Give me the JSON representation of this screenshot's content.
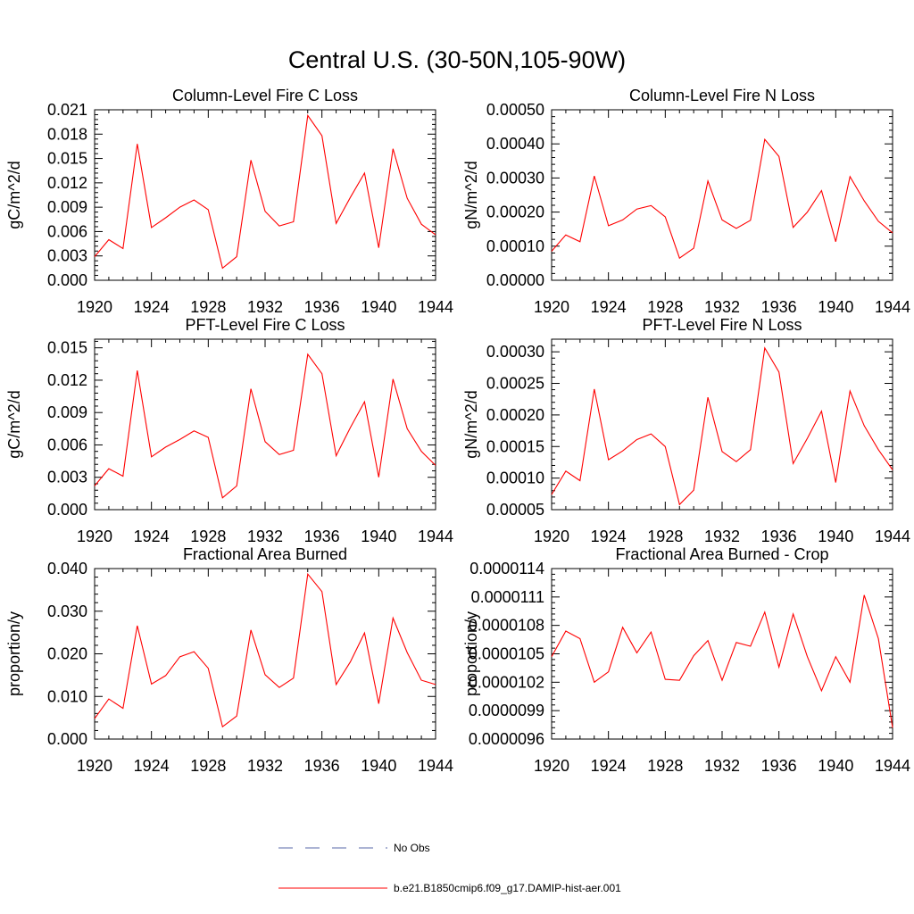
{
  "figure": {
    "title": "Central U.S. (30-50N,105-90W)",
    "legend": [
      {
        "label": "No Obs",
        "color": "#5a6aa8",
        "dash": true
      },
      {
        "label": "b.e21.B1850cmip6.f09_g17.DAMIP-hist-aer.001",
        "color": "#ff0000",
        "dash": false
      }
    ]
  },
  "chart_data": [
    {
      "type": "line",
      "title": "Column-Level Fire C Loss",
      "ylabel": "gC/m^2/d",
      "xlabel": "",
      "xlim": [
        1920,
        1944
      ],
      "ylim": [
        0,
        0.021
      ],
      "xticks": [
        "1920",
        "1924",
        "1928",
        "1932",
        "1936",
        "1940",
        "1944"
      ],
      "yticks": [
        "0.000",
        "0.003",
        "0.006",
        "0.009",
        "0.012",
        "0.015",
        "0.018",
        "0.021"
      ],
      "x": [
        1920,
        1921,
        1922,
        1923,
        1924,
        1925,
        1926,
        1927,
        1928,
        1929,
        1930,
        1931,
        1932,
        1933,
        1934,
        1935,
        1936,
        1937,
        1938,
        1939,
        1940,
        1941,
        1942,
        1943,
        1944
      ],
      "series": [
        {
          "color": "#ff0000",
          "values": [
            0.0029,
            0.005,
            0.0039,
            0.0168,
            0.0065,
            0.0077,
            0.009,
            0.0099,
            0.0087,
            0.0015,
            0.0029,
            0.0148,
            0.0085,
            0.0067,
            0.0072,
            0.0203,
            0.0178,
            0.007,
            0.0102,
            0.0132,
            0.004,
            0.0162,
            0.0101,
            0.0069,
            0.0056
          ]
        }
      ]
    },
    {
      "type": "line",
      "title": "Column-Level Fire N Loss",
      "ylabel": "gN/m^2/d",
      "xlabel": "",
      "xlim": [
        1920,
        1944
      ],
      "ylim": [
        0,
        0.0005
      ],
      "xticks": [
        "1920",
        "1924",
        "1928",
        "1932",
        "1936",
        "1940",
        "1944"
      ],
      "yticks": [
        "0.00000",
        "0.00010",
        "0.00020",
        "0.00030",
        "0.00040",
        "0.00050"
      ],
      "x": [
        1920,
        1921,
        1922,
        1923,
        1924,
        1925,
        1926,
        1927,
        1928,
        1929,
        1930,
        1931,
        1932,
        1933,
        1934,
        1935,
        1936,
        1937,
        1938,
        1939,
        1940,
        1941,
        1942,
        1943,
        1944
      ],
      "series": [
        {
          "color": "#ff0000",
          "values": [
            8.5e-05,
            0.000133,
            0.000113,
            0.000306,
            0.00016,
            0.000177,
            0.000209,
            0.000219,
            0.000186,
            6.5e-05,
            9.4e-05,
            0.000291,
            0.000177,
            0.000152,
            0.000176,
            0.000413,
            0.000363,
            0.000155,
            0.0002,
            0.000263,
            0.000113,
            0.000304,
            0.000233,
            0.000173,
            0.000139
          ]
        }
      ]
    },
    {
      "type": "line",
      "title": "PFT-Level Fire C Loss",
      "ylabel": "gC/m^2/d",
      "xlabel": "",
      "xlim": [
        1920,
        1944
      ],
      "ylim": [
        0,
        0.0158
      ],
      "xticks": [
        "1920",
        "1924",
        "1928",
        "1932",
        "1936",
        "1940",
        "1944"
      ],
      "yticks": [
        "0.000",
        "0.003",
        "0.006",
        "0.009",
        "0.012",
        "0.015"
      ],
      "x": [
        1920,
        1921,
        1922,
        1923,
        1924,
        1925,
        1926,
        1927,
        1928,
        1929,
        1930,
        1931,
        1932,
        1933,
        1934,
        1935,
        1936,
        1937,
        1938,
        1939,
        1940,
        1941,
        1942,
        1943,
        1944
      ],
      "series": [
        {
          "color": "#ff0000",
          "values": [
            0.0022,
            0.0038,
            0.0031,
            0.0129,
            0.0049,
            0.0058,
            0.0065,
            0.0073,
            0.0067,
            0.0011,
            0.0022,
            0.0112,
            0.0063,
            0.0051,
            0.0055,
            0.0144,
            0.0126,
            0.005,
            0.0076,
            0.01,
            0.003,
            0.0121,
            0.0075,
            0.0054,
            0.0041
          ]
        }
      ]
    },
    {
      "type": "line",
      "title": "PFT-Level Fire N Loss",
      "ylabel": "gN/m^2/d",
      "xlabel": "",
      "xlim": [
        1920,
        1944
      ],
      "ylim": [
        5e-05,
        0.00032
      ],
      "xticks": [
        "1920",
        "1924",
        "1928",
        "1932",
        "1936",
        "1940",
        "1944"
      ],
      "yticks": [
        "0.00005",
        "0.00010",
        "0.00015",
        "0.00020",
        "0.00025",
        "0.00030"
      ],
      "x": [
        1920,
        1921,
        1922,
        1923,
        1924,
        1925,
        1926,
        1927,
        1928,
        1929,
        1930,
        1931,
        1932,
        1933,
        1934,
        1935,
        1936,
        1937,
        1938,
        1939,
        1940,
        1941,
        1942,
        1943,
        1944
      ],
      "series": [
        {
          "color": "#ff0000",
          "values": [
            7.4e-05,
            0.000111,
            9.6e-05,
            0.000241,
            0.000129,
            0.000143,
            0.000161,
            0.00017,
            0.00015,
            5.8e-05,
            8.1e-05,
            0.000228,
            0.000142,
            0.000126,
            0.000145,
            0.000306,
            0.000268,
            0.000123,
            0.000163,
            0.000206,
            9.3e-05,
            0.000238,
            0.000183,
            0.000145,
            0.000113
          ]
        }
      ]
    },
    {
      "type": "line",
      "title": "Fractional Area Burned",
      "ylabel": "proportion/y",
      "xlabel": "",
      "xlim": [
        1920,
        1944
      ],
      "ylim": [
        0,
        0.04
      ],
      "xticks": [
        "1920",
        "1924",
        "1928",
        "1932",
        "1936",
        "1940",
        "1944"
      ],
      "yticks": [
        "0.000",
        "0.010",
        "0.020",
        "0.030",
        "0.040"
      ],
      "x": [
        1920,
        1921,
        1922,
        1923,
        1924,
        1925,
        1926,
        1927,
        1928,
        1929,
        1930,
        1931,
        1932,
        1933,
        1934,
        1935,
        1936,
        1937,
        1938,
        1939,
        1940,
        1941,
        1942,
        1943,
        1944
      ],
      "series": [
        {
          "color": "#ff0000",
          "values": [
            0.0048,
            0.0094,
            0.0072,
            0.0266,
            0.0129,
            0.0149,
            0.0193,
            0.0205,
            0.0166,
            0.0029,
            0.0054,
            0.0256,
            0.0151,
            0.0121,
            0.0143,
            0.0387,
            0.0346,
            0.0128,
            0.0181,
            0.0249,
            0.0083,
            0.0284,
            0.0203,
            0.0138,
            0.0128
          ]
        }
      ]
    },
    {
      "type": "line",
      "title": "Fractional Area Burned - Crop",
      "ylabel": "proportion/y",
      "xlabel": "",
      "xlim": [
        1920,
        1944
      ],
      "ylim": [
        9.6e-06,
        1.14e-05
      ],
      "xticks": [
        "1920",
        "1924",
        "1928",
        "1932",
        "1936",
        "1940",
        "1944"
      ],
      "yticks": [
        "0.0000096",
        "0.0000099",
        "0.0000102",
        "0.0000105",
        "0.0000108",
        "0.0000111",
        "0.0000114"
      ],
      "x": [
        1920,
        1921,
        1922,
        1923,
        1924,
        1925,
        1926,
        1927,
        1928,
        1929,
        1930,
        1931,
        1932,
        1933,
        1934,
        1935,
        1936,
        1937,
        1938,
        1939,
        1940,
        1941,
        1942,
        1943,
        1944
      ],
      "series": [
        {
          "color": "#ff0000",
          "values": [
            1.047e-05,
            1.074e-05,
            1.066e-05,
            1.02e-05,
            1.031e-05,
            1.078e-05,
            1.051e-05,
            1.073e-05,
            1.023e-05,
            1.022e-05,
            1.048e-05,
            1.064e-05,
            1.022e-05,
            1.062e-05,
            1.058e-05,
            1.094e-05,
            1.036e-05,
            1.092e-05,
            1.047e-05,
            1.011e-05,
            1.047e-05,
            1.02e-05,
            1.112e-05,
            1.066e-05,
            9.72e-06
          ]
        }
      ]
    }
  ]
}
